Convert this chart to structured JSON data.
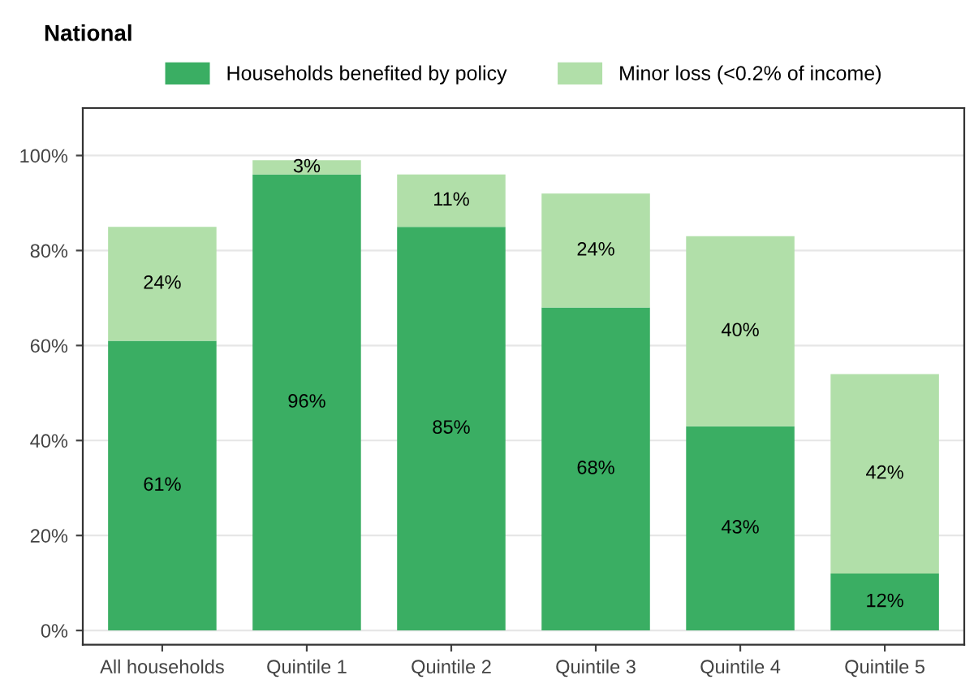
{
  "chart_data": {
    "type": "bar",
    "title": "National",
    "stacked": true,
    "categories": [
      "All households",
      "Quintile 1",
      "Quintile 2",
      "Quintile 3",
      "Quintile 4",
      "Quintile 5"
    ],
    "series": [
      {
        "name": "Households benefited by policy",
        "color": "#3aae63",
        "values": [
          61,
          96,
          85,
          68,
          43,
          12
        ],
        "value_labels": [
          "61%",
          "96%",
          "85%",
          "68%",
          "43%",
          "12%"
        ]
      },
      {
        "name": "Minor loss (<0.2% of income)",
        "color": "#b1dfa9",
        "values": [
          24,
          3,
          11,
          24,
          40,
          42
        ],
        "value_labels": [
          "24%",
          "3%",
          "11%",
          "24%",
          "40%",
          "42%"
        ]
      }
    ],
    "ylim": [
      -3,
      110
    ],
    "yticks": [
      {
        "value": 0,
        "label": "0%"
      },
      {
        "value": 20,
        "label": "20%"
      },
      {
        "value": 40,
        "label": "40%"
      },
      {
        "value": 60,
        "label": "60%"
      },
      {
        "value": 80,
        "label": "80%"
      },
      {
        "value": 100,
        "label": "100%"
      }
    ],
    "grid": "y",
    "legend": "top"
  }
}
